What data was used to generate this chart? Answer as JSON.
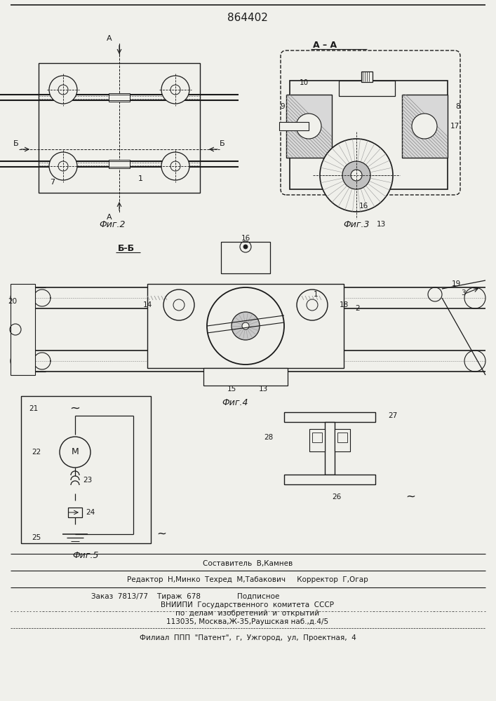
{
  "patent_number": "864402",
  "bg_color": "#f0f0eb",
  "line_color": "#1a1a1a",
  "hatch_color": "#555555",
  "footer_lines": [
    "Составитель  В,Камнев",
    "Редактор  Н,Минко  Техред  М,Табакович     Корректор  Г,Огар",
    "Заказ  7813/77    Тираж  678                Подписное",
    "ВНИИПИ  Государственного  комитета  СССР",
    "по  делам  изобретений  и  открытий",
    "113035, Москва,Ж-35,Раушская наб.,д.4/5",
    "Филиал  ППП  \"Патент\",  г,  Ужгород,  ул,  Проектная,  4"
  ]
}
